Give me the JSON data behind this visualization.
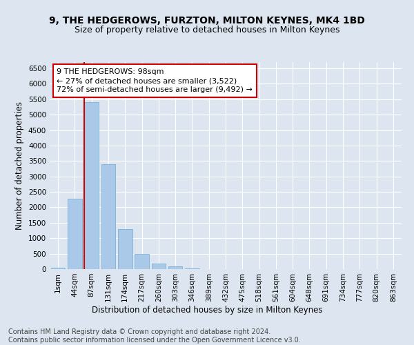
{
  "title": "9, THE HEDGEROWS, FURZTON, MILTON KEYNES, MK4 1BD",
  "subtitle": "Size of property relative to detached houses in Milton Keynes",
  "xlabel": "Distribution of detached houses by size in Milton Keynes",
  "ylabel": "Number of detached properties",
  "footer_line1": "Contains HM Land Registry data © Crown copyright and database right 2024.",
  "footer_line2": "Contains public sector information licensed under the Open Government Licence v3.0.",
  "categories": [
    "1sqm",
    "44sqm",
    "87sqm",
    "131sqm",
    "174sqm",
    "217sqm",
    "260sqm",
    "303sqm",
    "346sqm",
    "389sqm",
    "432sqm",
    "475sqm",
    "518sqm",
    "561sqm",
    "604sqm",
    "648sqm",
    "691sqm",
    "734sqm",
    "777sqm",
    "820sqm",
    "863sqm"
  ],
  "values": [
    50,
    2270,
    5400,
    3390,
    1300,
    490,
    185,
    80,
    30,
    0,
    0,
    0,
    0,
    0,
    0,
    0,
    0,
    0,
    0,
    0,
    0
  ],
  "bar_color": "#aac8e8",
  "bar_edge_color": "#6aaad4",
  "highlight_color": "#cc0000",
  "annotation_text_line1": "9 THE HEDGEROWS: 98sqm",
  "annotation_text_line2": "← 27% of detached houses are smaller (3,522)",
  "annotation_text_line3": "72% of semi-detached houses are larger (9,492) →",
  "annotation_box_facecolor": "#ffffff",
  "annotation_border_color": "#cc0000",
  "ylim": [
    0,
    6700
  ],
  "yticks": [
    0,
    500,
    1000,
    1500,
    2000,
    2500,
    3000,
    3500,
    4000,
    4500,
    5000,
    5500,
    6000,
    6500
  ],
  "background_color": "#dde6f0",
  "plot_bg_color": "#dde6f0",
  "grid_color": "#ffffff",
  "title_fontsize": 10,
  "subtitle_fontsize": 9,
  "axis_label_fontsize": 8.5,
  "tick_fontsize": 7.5,
  "annotation_fontsize": 8,
  "footer_fontsize": 7
}
